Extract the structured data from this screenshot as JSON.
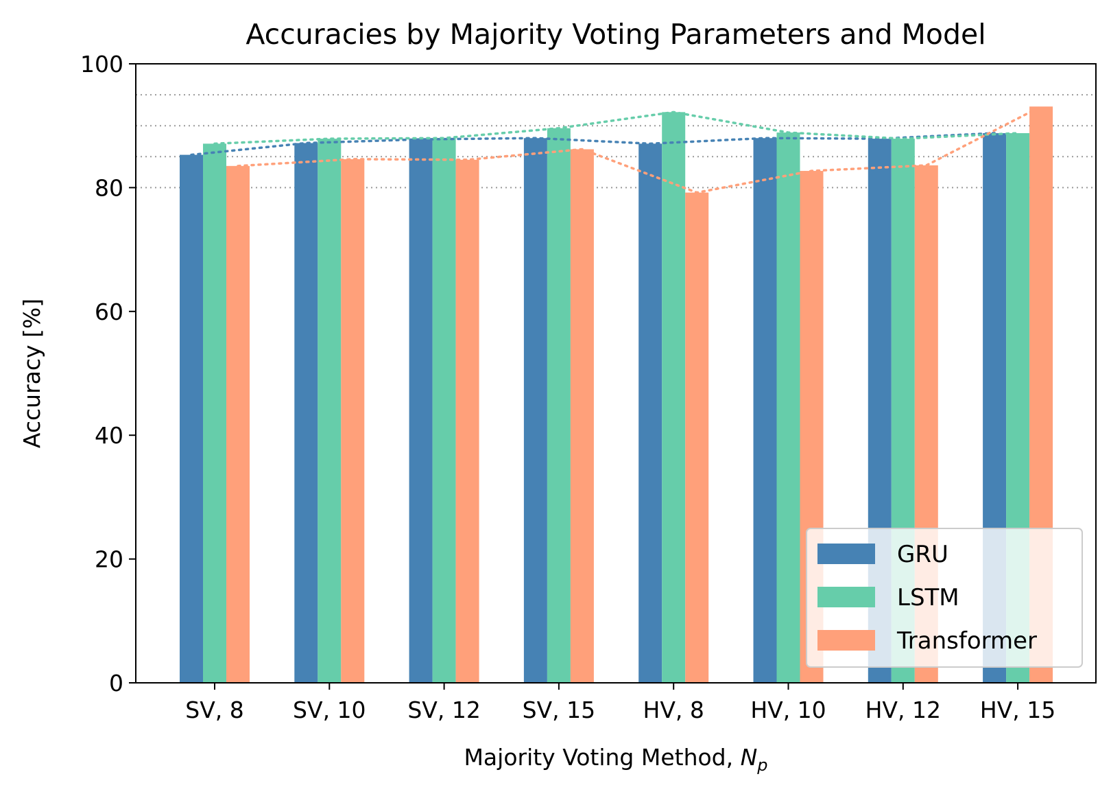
{
  "chart_data": {
    "type": "bar",
    "title": "Accuracies by Majority Voting Parameters and Model",
    "xlabel_main": "Majority Voting Method, ",
    "xlabel_symbol": "N",
    "xlabel_subscript": "p",
    "ylabel": "Accuracy [%]",
    "ylim": [
      0,
      100
    ],
    "yticks": [
      "0",
      "20",
      "40",
      "60",
      "80",
      "100"
    ],
    "ytick_values": [
      0,
      20,
      40,
      60,
      80,
      100
    ],
    "reference_lines": [
      80,
      85,
      90,
      95
    ],
    "categories": [
      "SV, 8",
      "SV, 10",
      "SV, 12",
      "SV, 15",
      "HV, 8",
      "HV, 10",
      "HV, 12",
      "HV, 15"
    ],
    "series": [
      {
        "name": "GRU",
        "color": "#4682b4",
        "values": [
          85.3,
          87.2,
          87.8,
          88.0,
          87.1,
          88.0,
          87.9,
          88.8
        ]
      },
      {
        "name": "LSTM",
        "color": "#66cdaa",
        "values": [
          87.1,
          87.9,
          88.0,
          89.6,
          92.2,
          88.9,
          87.9,
          88.8
        ]
      },
      {
        "name": "Transformer",
        "color": "#ffa07a",
        "values": [
          83.5,
          84.6,
          84.5,
          86.2,
          79.2,
          82.7,
          83.6,
          93.1
        ]
      }
    ],
    "legend_position": "lower-right",
    "grid": "dotted horizontal reference lines"
  }
}
